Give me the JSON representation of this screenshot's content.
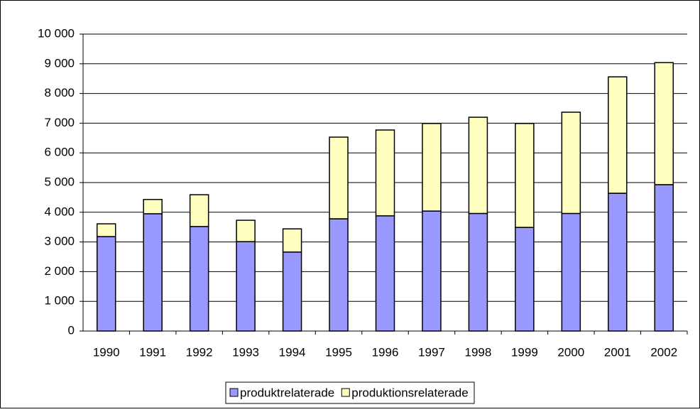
{
  "chart_data": {
    "type": "stacked-bar",
    "categories": [
      "1990",
      "1991",
      "1992",
      "1993",
      "1994",
      "1995",
      "1996",
      "1997",
      "1998",
      "1999",
      "2000",
      "2001",
      "2002"
    ],
    "series": [
      {
        "name": "produktrelaterade",
        "color": "#9999ff",
        "values": [
          3180,
          3950,
          3520,
          3010,
          2660,
          3780,
          3880,
          4040,
          3960,
          3490,
          3960,
          4640,
          4930
        ]
      },
      {
        "name": "produktionsrelaterade",
        "color": "#ffffc0",
        "values": [
          430,
          480,
          1070,
          720,
          780,
          2750,
          2890,
          2950,
          3240,
          3500,
          3410,
          3920,
          4110
        ]
      }
    ],
    "ylim": [
      0,
      10000
    ],
    "yticks": [
      0,
      {
        "value": 1000,
        "label": "1 000"
      },
      {
        "value": 2000,
        "label": "2 000"
      },
      {
        "value": 3000,
        "label": "3 000"
      },
      {
        "value": 4000,
        "label": "4 000"
      },
      {
        "value": 5000,
        "label": "5 000"
      },
      {
        "value": 6000,
        "label": "6 000"
      },
      {
        "value": 7000,
        "label": "7 000"
      },
      {
        "value": 8000,
        "label": "8 000"
      },
      {
        "value": 9000,
        "label": "9 000"
      },
      {
        "value": 10000,
        "label": "10 000"
      }
    ],
    "grid": true,
    "legend": "bottom"
  }
}
